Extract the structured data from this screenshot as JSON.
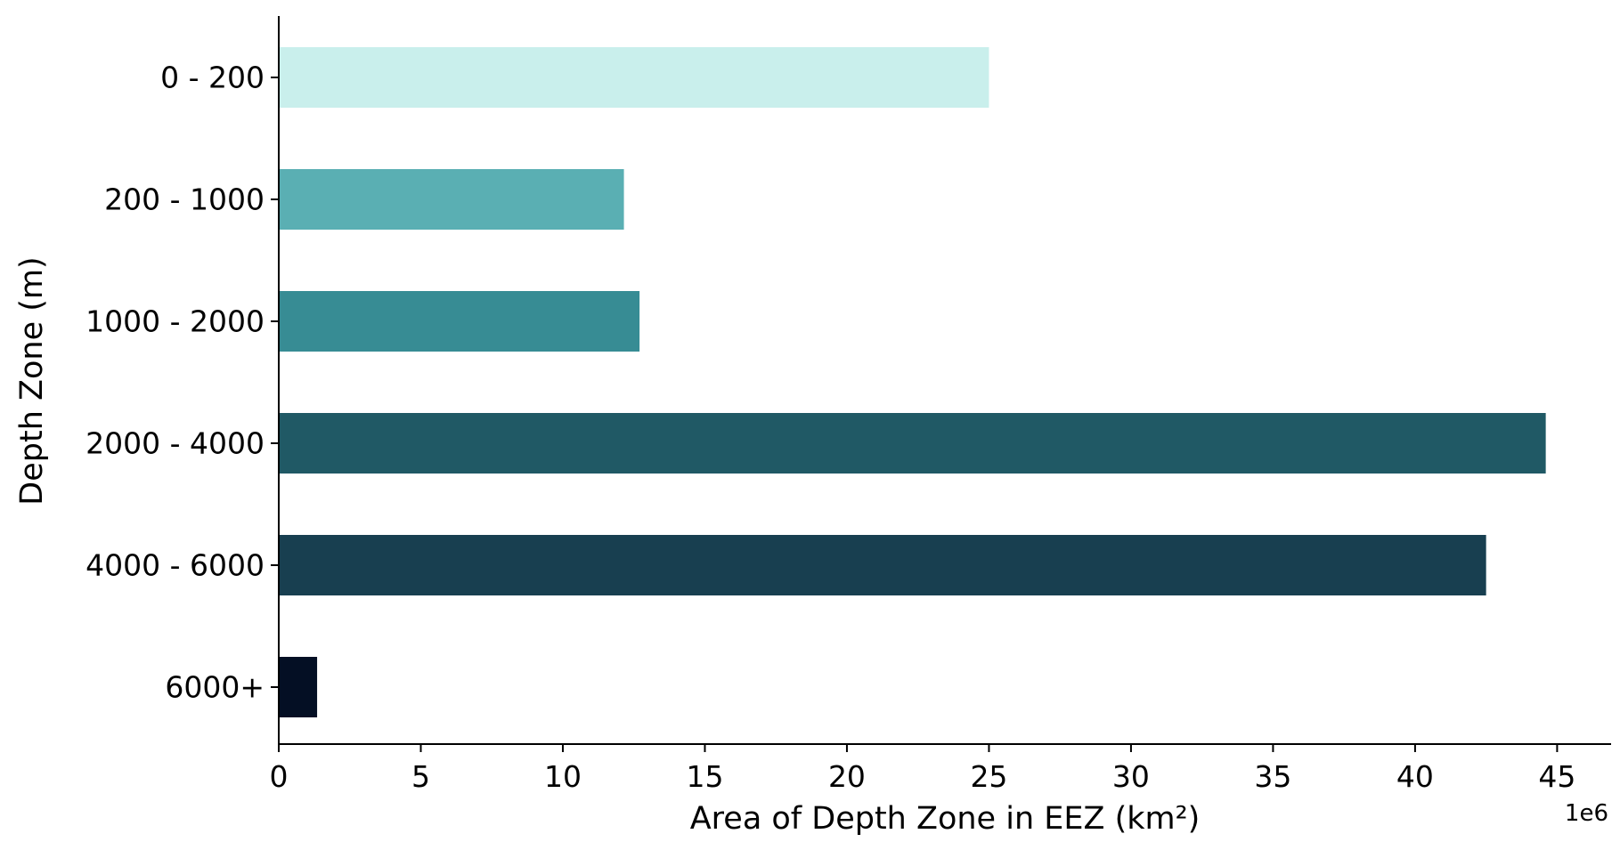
{
  "chart_data": {
    "type": "bar",
    "orientation": "horizontal",
    "categories": [
      "0 - 200",
      "200 - 1000",
      "1000 - 2000",
      "2000 - 4000",
      "4000 - 6000",
      "6000+"
    ],
    "values": [
      25.0,
      12.15,
      12.7,
      44.6,
      42.5,
      1.35
    ],
    "colors": [
      "#c9efec",
      "#5aafb3",
      "#378c94",
      "#205965",
      "#183f50",
      "#040f24"
    ],
    "xlabel": "Area of Depth Zone in EEZ (km²)",
    "ylabel": "Depth Zone (m)",
    "x_offset_label": "1e6",
    "xlim": [
      0,
      46.9
    ],
    "xticks": [
      0,
      5,
      10,
      15,
      20,
      25,
      30,
      35,
      40,
      45
    ],
    "xtick_labels": [
      "0",
      "5",
      "10",
      "15",
      "20",
      "25",
      "30",
      "35",
      "40",
      "45"
    ],
    "grid": false,
    "legend": "none"
  }
}
